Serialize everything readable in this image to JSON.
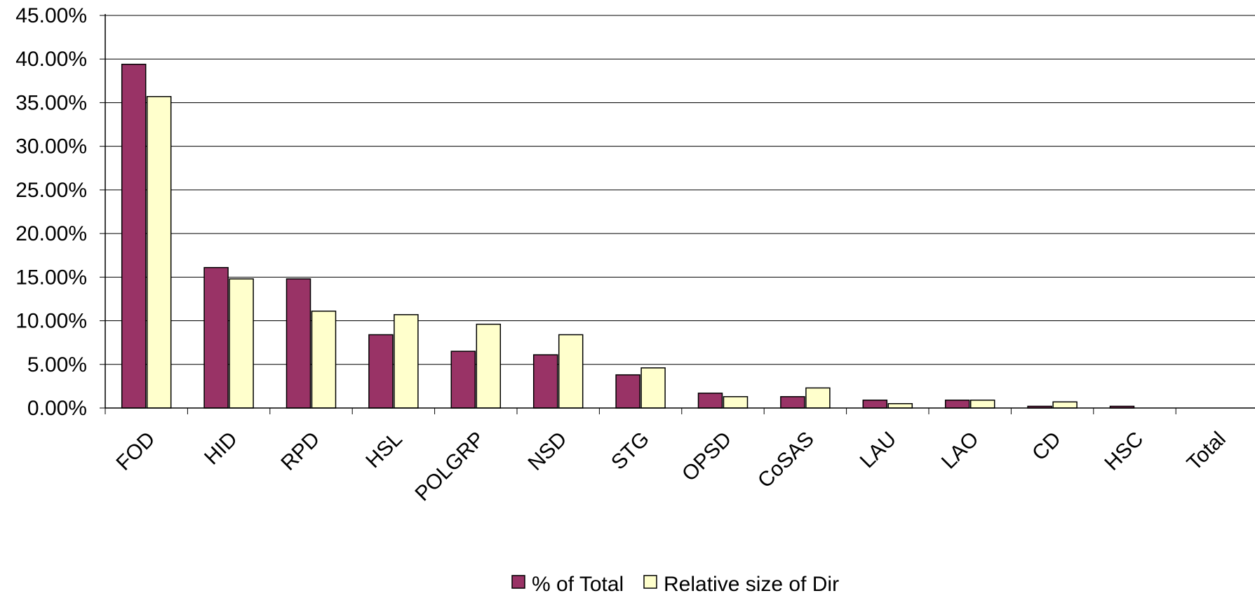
{
  "chart_data": {
    "type": "bar",
    "title": "",
    "xlabel": "",
    "ylabel": "",
    "categories": [
      "FOD",
      "HID",
      "RPD",
      "HSL",
      "POLGRP",
      "NSD",
      "STG",
      "OPSD",
      "CoSAS",
      "LAU",
      "LAO",
      "CD",
      "HSC",
      "Total"
    ],
    "series": [
      {
        "name": "% of Total",
        "color": "#993366",
        "values": [
          39.4,
          16.1,
          14.8,
          8.4,
          6.5,
          6.1,
          3.8,
          1.7,
          1.3,
          0.9,
          0.9,
          0.2,
          0.2,
          0
        ]
      },
      {
        "name": "Relative size of Dir",
        "color": "#FFFFCC",
        "values": [
          35.7,
          14.8,
          11.1,
          10.7,
          9.6,
          8.4,
          4.6,
          1.3,
          2.3,
          0.5,
          0.9,
          0.7,
          0,
          0
        ]
      }
    ],
    "ylim": [
      0,
      45
    ],
    "yticks": [
      "0.00%",
      "5.00%",
      "10.00%",
      "15.00%",
      "20.00%",
      "25.00%",
      "30.00%",
      "35.00%",
      "40.00%",
      "45.00%"
    ],
    "grid": true,
    "legend_position": "bottom"
  }
}
